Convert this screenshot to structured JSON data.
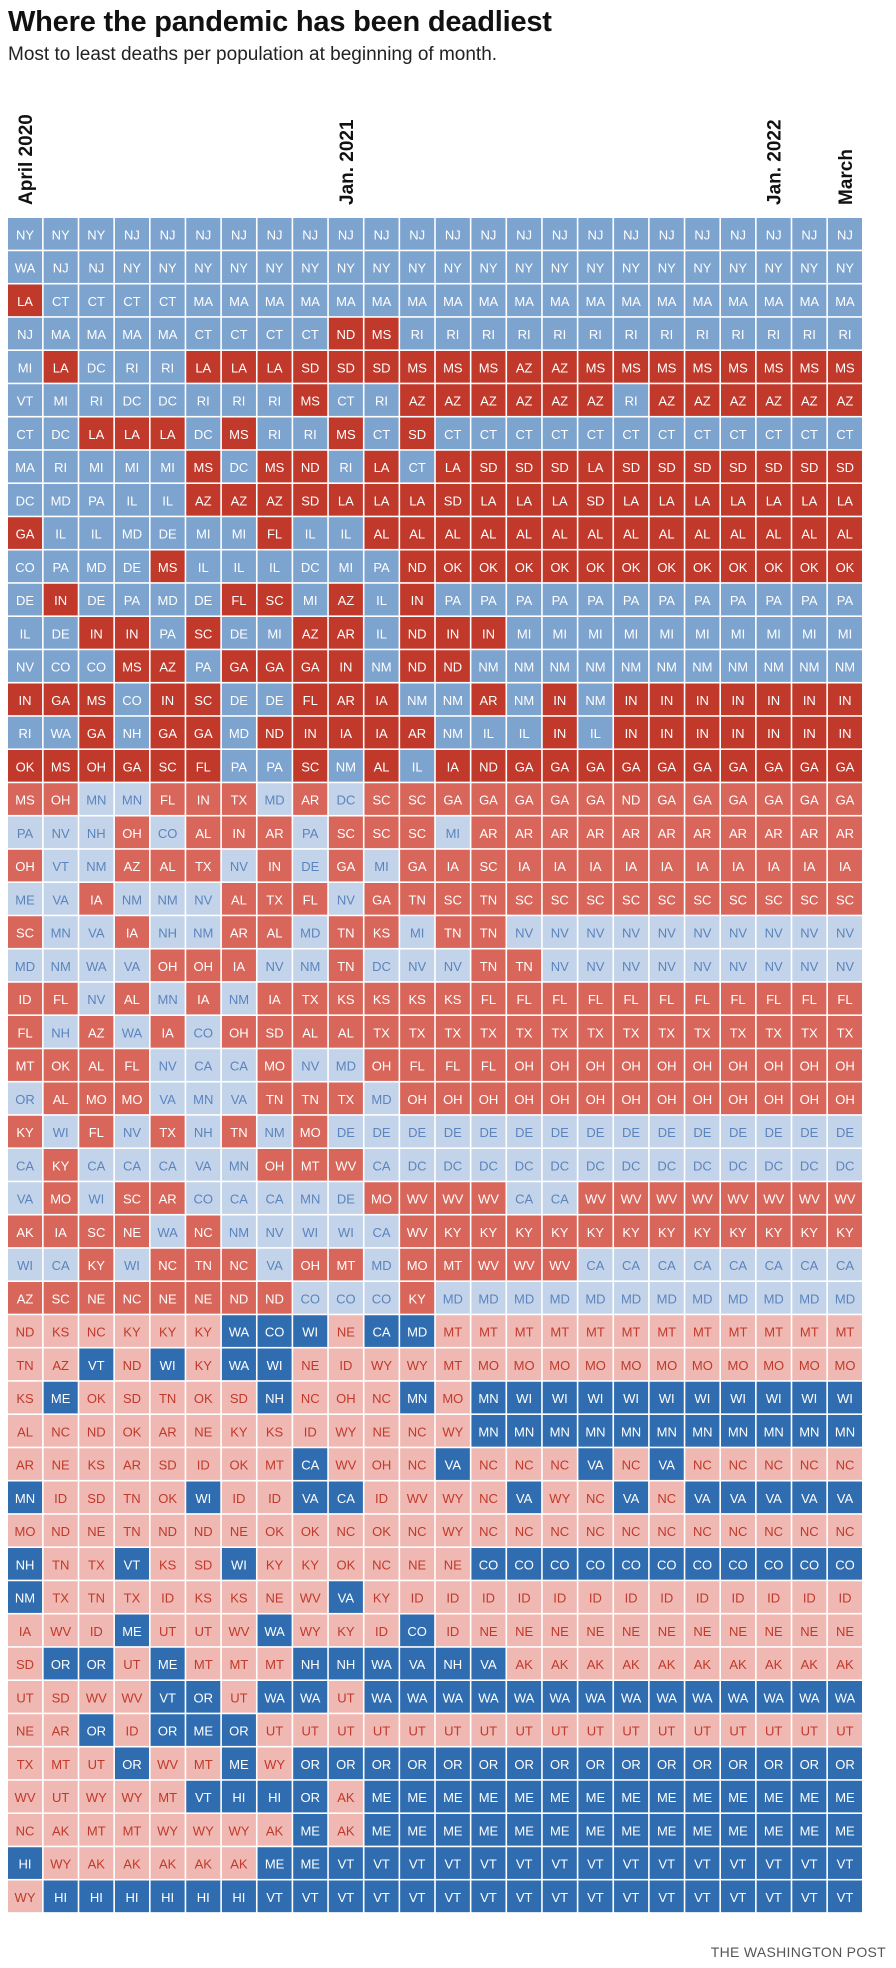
{
  "header": {
    "title": "Where the pandemic has been deadliest",
    "subtitle": "Most to least deaths per population at beginning of month."
  },
  "footer": {
    "credit": "THE WASHINGTON POST"
  },
  "chart_data": {
    "type": "heatmap",
    "title": "Where the pandemic has been deadliest",
    "subtitle": "Most to least deaths per population at beginning of month.",
    "column_labels": [
      {
        "col": 0,
        "text": "April 2020"
      },
      {
        "col": 9,
        "text": "Jan. 2021"
      },
      {
        "col": 21,
        "text": "Jan. 2022"
      },
      {
        "col": 23,
        "text": "March"
      }
    ],
    "columns": [
      [
        "NY",
        "WA",
        "LA",
        "NJ",
        "MI",
        "VT",
        "CT",
        "MA",
        "DC",
        "GA",
        "CO",
        "DE",
        "IL",
        "NV",
        "IN",
        "RI",
        "OK",
        "MS",
        "PA",
        "OH",
        "ME",
        "SC",
        "MD",
        "ID",
        "FL",
        "MT",
        "OR",
        "KY",
        "CA",
        "VA",
        "AK",
        "WI",
        "AZ",
        "ND",
        "TN",
        "KS",
        "AL",
        "AR",
        "MN",
        "MO",
        "NH",
        "NM",
        "IA",
        "SD",
        "UT",
        "NE",
        "TX",
        "WV",
        "NC",
        "HI",
        "WY"
      ],
      [
        "NY",
        "NJ",
        "CT",
        "MA",
        "LA",
        "MI",
        "DC",
        "RI",
        "MD",
        "IL",
        "PA",
        "IN",
        "DE",
        "CO",
        "GA",
        "WA",
        "MS",
        "OH",
        "NV",
        "VT",
        "VA",
        "MN",
        "NM",
        "FL",
        "NH",
        "OK",
        "AL",
        "WI",
        "KY",
        "MO",
        "IA",
        "CA",
        "SC",
        "KS",
        "AZ",
        "ME",
        "NC",
        "NE",
        "ID",
        "ND",
        "TN",
        "TX",
        "WV",
        "OR",
        "SD",
        "AR",
        "MT",
        "UT",
        "AK",
        "WY",
        "HI"
      ],
      [
        "NY",
        "NJ",
        "CT",
        "MA",
        "DC",
        "RI",
        "LA",
        "MI",
        "PA",
        "IL",
        "MD",
        "DE",
        "IN",
        "CO",
        "MS",
        "GA",
        "OH",
        "MN",
        "NH",
        "NM",
        "IA",
        "VA",
        "WA",
        "NV",
        "AZ",
        "AL",
        "MO",
        "FL",
        "CA",
        "WI",
        "SC",
        "KY",
        "NE",
        "NC",
        "VT",
        "OK",
        "ND",
        "KS",
        "SD",
        "NE",
        "TX",
        "TN",
        "ID",
        "OR",
        "WV",
        "OR",
        "UT",
        "WY",
        "MT",
        "AK",
        "HI"
      ],
      [
        "NJ",
        "NY",
        "CT",
        "MA",
        "RI",
        "DC",
        "LA",
        "MI",
        "IL",
        "MD",
        "DE",
        "PA",
        "IN",
        "MS",
        "CO",
        "NH",
        "GA",
        "MN",
        "OH",
        "AZ",
        "NM",
        "IA",
        "VA",
        "AL",
        "WA",
        "FL",
        "MO",
        "NV",
        "CA",
        "SC",
        "NE",
        "WI",
        "NC",
        "KY",
        "ND",
        "SD",
        "OK",
        "AR",
        "TN",
        "TN",
        "VT",
        "TX",
        "ME",
        "UT",
        "WV",
        "ID",
        "OR",
        "WY",
        "MT",
        "AK",
        "HI"
      ],
      [
        "NJ",
        "NY",
        "CT",
        "MA",
        "RI",
        "DC",
        "LA",
        "MI",
        "IL",
        "DE",
        "MS",
        "MD",
        "PA",
        "AZ",
        "IN",
        "GA",
        "SC",
        "FL",
        "CO",
        "AL",
        "NM",
        "NH",
        "OH",
        "MN",
        "IA",
        "NV",
        "VA",
        "TX",
        "CA",
        "AR",
        "WA",
        "NC",
        "NE",
        "KY",
        "WI",
        "TN",
        "AR",
        "SD",
        "OK",
        "ND",
        "KS",
        "ID",
        "UT",
        "ME",
        "VT",
        "OR",
        "WV",
        "MT",
        "WY",
        "AK",
        "HI"
      ],
      [
        "NJ",
        "NY",
        "MA",
        "CT",
        "LA",
        "RI",
        "DC",
        "MS",
        "AZ",
        "MI",
        "IL",
        "DE",
        "SC",
        "PA",
        "SC",
        "GA",
        "FL",
        "IN",
        "AL",
        "TX",
        "NV",
        "NM",
        "OH",
        "IA",
        "CO",
        "CA",
        "MN",
        "NH",
        "VA",
        "CO",
        "NC",
        "TN",
        "NE",
        "KY",
        "KY",
        "OK",
        "NE",
        "ID",
        "WI",
        "ND",
        "SD",
        "KS",
        "UT",
        "MT",
        "OR",
        "ME",
        "MT",
        "VT",
        "WY",
        "AK",
        "HI"
      ],
      [
        "NJ",
        "NY",
        "MA",
        "CT",
        "LA",
        "RI",
        "MS",
        "DC",
        "AZ",
        "MI",
        "IL",
        "FL",
        "DE",
        "GA",
        "DE",
        "MD",
        "PA",
        "TX",
        "IN",
        "NV",
        "AL",
        "AR",
        "IA",
        "NM",
        "OH",
        "CA",
        "VA",
        "TN",
        "MN",
        "CA",
        "NM",
        "NC",
        "ND",
        "WA",
        "WA",
        "SD",
        "KY",
        "OK",
        "ID",
        "NE",
        "WI",
        "KS",
        "WV",
        "MT",
        "UT",
        "OR",
        "ME",
        "HI",
        "WY",
        "AK",
        "HI"
      ],
      [
        "NJ",
        "NY",
        "MA",
        "CT",
        "LA",
        "RI",
        "RI",
        "MS",
        "AZ",
        "FL",
        "IL",
        "SC",
        "MI",
        "GA",
        "DE",
        "ND",
        "PA",
        "MD",
        "AR",
        "IN",
        "TX",
        "AL",
        "NV",
        "IA",
        "SD",
        "MO",
        "TN",
        "NM",
        "OH",
        "CA",
        "NV",
        "VA",
        "ND",
        "CO",
        "WI",
        "NH",
        "KS",
        "MT",
        "ID",
        "OK",
        "KY",
        "NE",
        "WA",
        "MT",
        "WA",
        "UT",
        "WY",
        "HI",
        "AK",
        "ME",
        "VT"
      ],
      [
        "NJ",
        "NY",
        "MA",
        "CT",
        "SD",
        "MS",
        "RI",
        "ND",
        "SD",
        "IL",
        "DC",
        "MI",
        "AZ",
        "GA",
        "FL",
        "IN",
        "SC",
        "AR",
        "PA",
        "DE",
        "FL",
        "MD",
        "NM",
        "TX",
        "AL",
        "NV",
        "TN",
        "MO",
        "MT",
        "MN",
        "WI",
        "OH",
        "CO",
        "WI",
        "NE",
        "NC",
        "ID",
        "CA",
        "VA",
        "OK",
        "KY",
        "WV",
        "WY",
        "NH",
        "WA",
        "UT",
        "OR",
        "OR",
        "ME",
        "ME",
        "VT"
      ],
      [
        "NJ",
        "NY",
        "MA",
        "ND",
        "SD",
        "CT",
        "MS",
        "RI",
        "LA",
        "IL",
        "MI",
        "AZ",
        "AR",
        "IN",
        "AR",
        "IA",
        "NM",
        "DC",
        "SC",
        "GA",
        "NV",
        "TN",
        "TN",
        "KS",
        "AL",
        "MD",
        "TX",
        "DE",
        "WV",
        "DE",
        "WI",
        "MT",
        "CO",
        "NE",
        "ID",
        "OH",
        "WY",
        "WV",
        "CA",
        "NC",
        "OK",
        "VA",
        "KY",
        "NH",
        "UT",
        "UT",
        "OR",
        "AK",
        "AK",
        "VT",
        "VT"
      ]
    ],
    "columns_part2": [
      [
        "NJ",
        "NY",
        "MA",
        "MS",
        "SD",
        "RI",
        "CT",
        "LA",
        "LA",
        "AL",
        "PA",
        "IL",
        "IL",
        "NM",
        "IA",
        "IA",
        "AL",
        "SC",
        "SC",
        "MI",
        "GA",
        "KS",
        "DC",
        "KS",
        "TX",
        "OH",
        "MD",
        "DE",
        "CA",
        "MO",
        "CA",
        "MD",
        "CO",
        "CA",
        "WY",
        "NC",
        "NE",
        "OH",
        "ID",
        "OK",
        "NC",
        "KY",
        "ID",
        "WA",
        "WA",
        "UT",
        "OR",
        "ME",
        "ME",
        "VT",
        "VT"
      ],
      [
        "NJ",
        "NY",
        "MA",
        "RI",
        "MS",
        "AZ",
        "SD",
        "CT",
        "LA",
        "AL",
        "ND",
        "IN",
        "ND",
        "ND",
        "NM",
        "AR",
        "IL",
        "SC",
        "SC",
        "GA",
        "TN",
        "MI",
        "NV",
        "KS",
        "TX",
        "FL",
        "OH",
        "DE",
        "DC",
        "WV",
        "WV",
        "MO",
        "KY",
        "MD",
        "WY",
        "MN",
        "NC",
        "NC",
        "WV",
        "NC",
        "NE",
        "ID",
        "CO",
        "VA",
        "WA",
        "UT",
        "OR",
        "ME",
        "ME",
        "VT",
        "VT"
      ],
      [
        "NJ",
        "NY",
        "MA",
        "RI",
        "MS",
        "AZ",
        "CT",
        "LA",
        "SD",
        "AL",
        "OK",
        "PA",
        "IN",
        "ND",
        "NM",
        "NM",
        "IA",
        "GA",
        "MI",
        "IA",
        "SC",
        "TN",
        "NV",
        "KS",
        "TX",
        "FL",
        "OH",
        "DE",
        "DC",
        "WV",
        "KY",
        "MT",
        "MD",
        "MT",
        "MT",
        "MO",
        "WY",
        "VA",
        "WY",
        "WY",
        "NE",
        "ID",
        "ID",
        "NH",
        "WA",
        "UT",
        "OR",
        "ME",
        "ME",
        "VT",
        "VT"
      ],
      [
        "NJ",
        "NY",
        "MA",
        "RI",
        "MS",
        "AZ",
        "CT",
        "SD",
        "LA",
        "AL",
        "OK",
        "PA",
        "IN",
        "NM",
        "AR",
        "IL",
        "ND",
        "GA",
        "AR",
        "SC",
        "TN",
        "TN",
        "TN",
        "FL",
        "TX",
        "FL",
        "OH",
        "DE",
        "DC",
        "WV",
        "KY",
        "WV",
        "MD",
        "MT",
        "MO",
        "MN",
        "MN",
        "NC",
        "NC",
        "NC",
        "CO",
        "ID",
        "NE",
        "VA",
        "WA",
        "UT",
        "OR",
        "ME",
        "ME",
        "VT",
        "VT"
      ]
    ],
    "note_structure": "Heatmap: 24 monthly columns (April 2020 to March 2022), 51 rows ranked most (top) to least (bottom) deaths per population. Cell color: red for states with high deaths, blue for low, with shade by rank within month; columns listed in order of appearance. columns holds months 1-10, columns_part2 months 11-14, columns_part3 months 15-24.",
    "columns_part3": [
      [
        "NJ",
        "NY",
        "MA",
        "RI",
        "AZ",
        "AZ",
        "CT",
        "SD",
        "LA",
        "AL",
        "OK",
        "PA",
        "MI",
        "NM",
        "NM",
        "IL",
        "GA",
        "GA",
        "AR",
        "IA",
        "SC",
        "NV",
        "TN",
        "FL",
        "TX",
        "OH",
        "OH",
        "DE",
        "DC",
        "CA",
        "KY",
        "WV",
        "MD",
        "MT",
        "MO",
        "WI",
        "MN",
        "NC",
        "VA",
        "NC",
        "CO",
        "ID",
        "NE",
        "AK",
        "WA",
        "UT",
        "OR",
        "ME",
        "ME",
        "VT",
        "VT"
      ],
      [
        "NJ",
        "NY",
        "MA",
        "RI",
        "AZ",
        "AZ",
        "CT",
        "SD",
        "LA",
        "AL",
        "OK",
        "PA",
        "MI",
        "NM",
        "IN",
        "IN",
        "GA",
        "GA",
        "AR",
        "IA",
        "SC",
        "NV",
        "NV",
        "FL",
        "TX",
        "OH",
        "OH",
        "DE",
        "DC",
        "CA",
        "KY",
        "WV",
        "MD",
        "MT",
        "MO",
        "WI",
        "MN",
        "NC",
        "WY",
        "NC",
        "CO",
        "ID",
        "NE",
        "AK",
        "WA",
        "UT",
        "OR",
        "ME",
        "ME",
        "VT",
        "VT"
      ],
      [
        "NJ",
        "NY",
        "MA",
        "RI",
        "MS",
        "AZ",
        "CT",
        "LA",
        "SD",
        "AL",
        "OK",
        "PA",
        "MI",
        "NM",
        "NM",
        "IL",
        "GA",
        "GA",
        "AR",
        "IA",
        "SC",
        "NV",
        "NV",
        "FL",
        "TX",
        "OH",
        "OH",
        "DE",
        "DC",
        "WV",
        "KY",
        "CA",
        "MD",
        "MT",
        "MO",
        "WI",
        "MN",
        "VA",
        "NC",
        "NC",
        "CO",
        "ID",
        "NE",
        "AK",
        "WA",
        "UT",
        "OR",
        "ME",
        "ME",
        "VT",
        "VT"
      ],
      [
        "NJ",
        "NY",
        "MA",
        "RI",
        "MS",
        "RI",
        "CT",
        "SD",
        "LA",
        "AL",
        "OK",
        "PA",
        "MI",
        "NM",
        "IN",
        "IN",
        "GA",
        "ND",
        "AR",
        "IA",
        "SC",
        "NV",
        "NV",
        "FL",
        "TX",
        "OH",
        "OH",
        "DE",
        "DC",
        "WV",
        "KY",
        "CA",
        "MD",
        "MT",
        "MO",
        "WI",
        "MN",
        "NC",
        "VA",
        "NC",
        "CO",
        "ID",
        "NE",
        "AK",
        "WA",
        "UT",
        "OR",
        "ME",
        "ME",
        "VT",
        "VT"
      ],
      [
        "NJ",
        "NY",
        "MA",
        "RI",
        "MS",
        "AZ",
        "CT",
        "SD",
        "LA",
        "AL",
        "OK",
        "PA",
        "MI",
        "NM",
        "IN",
        "IN",
        "GA",
        "GA",
        "AR",
        "IA",
        "SC",
        "NV",
        "NV",
        "FL",
        "TX",
        "OH",
        "OH",
        "DE",
        "DC",
        "WV",
        "KY",
        "CA",
        "MD",
        "MT",
        "MO",
        "WI",
        "MN",
        "VA",
        "NC",
        "NC",
        "CO",
        "ID",
        "NE",
        "AK",
        "WA",
        "UT",
        "OR",
        "ME",
        "ME",
        "VT",
        "VT"
      ],
      [
        "NJ",
        "NY",
        "MA",
        "RI",
        "MS",
        "AZ",
        "CT",
        "SD",
        "LA",
        "AL",
        "OK",
        "PA",
        "MI",
        "NM",
        "IN",
        "IN",
        "GA",
        "GA",
        "AR",
        "IA",
        "SC",
        "NV",
        "NV",
        "FL",
        "TX",
        "OH",
        "OH",
        "DE",
        "DC",
        "WV",
        "KY",
        "CA",
        "MD",
        "MT",
        "MO",
        "WI",
        "MN",
        "NC",
        "VA",
        "NC",
        "CO",
        "ID",
        "NE",
        "AK",
        "WA",
        "UT",
        "OR",
        "ME",
        "ME",
        "VT",
        "VT"
      ],
      [
        "NJ",
        "NY",
        "MA",
        "RI",
        "MS",
        "AZ",
        "CT",
        "SD",
        "LA",
        "AL",
        "OK",
        "PA",
        "MI",
        "NM",
        "IN",
        "IN",
        "GA",
        "GA",
        "AR",
        "IA",
        "SC",
        "NV",
        "NV",
        "FL",
        "TX",
        "OH",
        "OH",
        "DE",
        "DC",
        "WV",
        "KY",
        "CA",
        "MD",
        "MT",
        "MO",
        "WI",
        "MN",
        "NC",
        "VA",
        "NC",
        "CO",
        "ID",
        "NE",
        "AK",
        "WA",
        "UT",
        "OR",
        "ME",
        "ME",
        "VT",
        "VT"
      ],
      [
        "NJ",
        "NY",
        "MA",
        "RI",
        "MS",
        "AZ",
        "CT",
        "SD",
        "LA",
        "AL",
        "OK",
        "PA",
        "MI",
        "NM",
        "IN",
        "IN",
        "GA",
        "GA",
        "AR",
        "IA",
        "SC",
        "NV",
        "NV",
        "FL",
        "TX",
        "OH",
        "OH",
        "DE",
        "DC",
        "WV",
        "KY",
        "CA",
        "MD",
        "MT",
        "MO",
        "WI",
        "MN",
        "NC",
        "VA",
        "NC",
        "CO",
        "ID",
        "NE",
        "AK",
        "WA",
        "UT",
        "OR",
        "ME",
        "ME",
        "VT",
        "VT"
      ],
      [
        "NJ",
        "NY",
        "MA",
        "RI",
        "MS",
        "AZ",
        "CT",
        "SD",
        "LA",
        "AL",
        "OK",
        "PA",
        "MI",
        "NM",
        "IN",
        "IN",
        "GA",
        "GA",
        "AR",
        "IA",
        "SC",
        "NV",
        "NV",
        "FL",
        "TX",
        "OH",
        "OH",
        "DE",
        "DC",
        "WV",
        "KY",
        "CA",
        "MD",
        "MT",
        "MO",
        "WI",
        "MN",
        "NC",
        "VA",
        "NC",
        "CO",
        "ID",
        "NE",
        "AK",
        "WA",
        "UT",
        "OR",
        "ME",
        "ME",
        "VT",
        "VT"
      ],
      [
        "NJ",
        "NY",
        "MA",
        "RI",
        "MS",
        "AZ",
        "CT",
        "SD",
        "LA",
        "AL",
        "OK",
        "PA",
        "MI",
        "NM",
        "IN",
        "IN",
        "GA",
        "GA",
        "AR",
        "IA",
        "SC",
        "NV",
        "NV",
        "FL",
        "TX",
        "OH",
        "OH",
        "DE",
        "DC",
        "WV",
        "KY",
        "CA",
        "MD",
        "MT",
        "MO",
        "WI",
        "MN",
        "NC",
        "VA",
        "NC",
        "CO",
        "ID",
        "NE",
        "AK",
        "WA",
        "UT",
        "OR",
        "ME",
        "ME",
        "VT",
        "VT"
      ]
    ],
    "colors": {
      "red_strong": "#c0392b",
      "red_mid": "#d9665a",
      "red_light": "#f0b8b2",
      "blue_light": "#c3d4ea",
      "blue_mid": "#7da3cf",
      "blue_strong": "#2f6db0",
      "blue_deep": "#1b5aa8",
      "text_on_dark": "#ffffff",
      "text_on_light_red": "#c0392b",
      "text_on_light_blue": "#5b84bd"
    }
  }
}
